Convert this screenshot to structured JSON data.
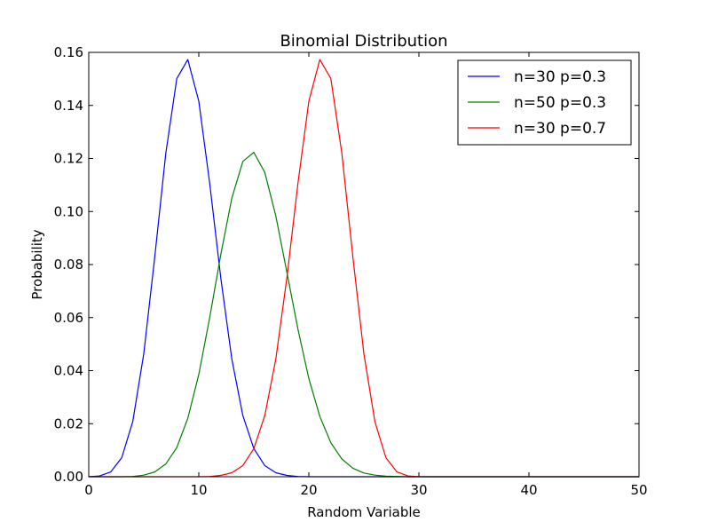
{
  "chart_data": {
    "type": "line",
    "title": "Binomial Distribution",
    "xlabel": "Random Variable",
    "ylabel": "Probability",
    "xlim": [
      0,
      50
    ],
    "ylim": [
      0,
      0.16
    ],
    "xticks": [
      0,
      10,
      20,
      30,
      40,
      50
    ],
    "yticks": [
      0.0,
      0.02,
      0.04,
      0.06,
      0.08,
      0.1,
      0.12,
      0.14,
      0.16
    ],
    "xtick_labels": [
      "0",
      "10",
      "20",
      "30",
      "40",
      "50"
    ],
    "ytick_labels": [
      "0.00",
      "0.02",
      "0.04",
      "0.06",
      "0.08",
      "0.10",
      "0.12",
      "0.14",
      "0.16"
    ],
    "grid": false,
    "legend_position": "top-right",
    "x": [
      0,
      1,
      2,
      3,
      4,
      5,
      6,
      7,
      8,
      9,
      10,
      11,
      12,
      13,
      14,
      15,
      16,
      17,
      18,
      19,
      20,
      21,
      22,
      23,
      24,
      25,
      26,
      27,
      28,
      29,
      30,
      31,
      32,
      33,
      34,
      35,
      36,
      37,
      38,
      39,
      40,
      41,
      42,
      43,
      44,
      45,
      46,
      47,
      48,
      49,
      50
    ],
    "series": [
      {
        "name": "n=30 p=0.3",
        "color": "#0000ff",
        "values": [
          2e-05,
          0.0003,
          0.0018,
          0.0072,
          0.0208,
          0.0464,
          0.0829,
          0.1219,
          0.1501,
          0.1573,
          0.1416,
          0.1103,
          0.0749,
          0.0444,
          0.0231,
          0.0106,
          0.0042,
          0.0015,
          0.0005,
          0.0001,
          0.0,
          0.0,
          0.0,
          0.0,
          0.0,
          0.0,
          0.0,
          0.0,
          0.0,
          0.0,
          0.0,
          0,
          0,
          0,
          0,
          0,
          0,
          0,
          0,
          0,
          0,
          0,
          0,
          0,
          0,
          0,
          0,
          0,
          0,
          0,
          0
        ]
      },
      {
        "name": "n=50 p=0.3",
        "color": "#008000",
        "values": [
          0.0,
          0.0,
          0.0,
          0.0,
          0.0001,
          0.0006,
          0.0018,
          0.0048,
          0.011,
          0.022,
          0.0386,
          0.0602,
          0.0838,
          0.105,
          0.1189,
          0.1223,
          0.1147,
          0.0983,
          0.0772,
          0.0558,
          0.037,
          0.0227,
          0.0128,
          0.0067,
          0.0032,
          0.0014,
          0.0006,
          0.0002,
          0.0001,
          0.0,
          0.0,
          0,
          0,
          0,
          0,
          0,
          0,
          0,
          0,
          0,
          0,
          0,
          0,
          0,
          0,
          0,
          0,
          0,
          0,
          0,
          0
        ]
      },
      {
        "name": "n=30 p=0.7",
        "color": "#ff0000",
        "values": [
          0,
          0,
          0,
          0,
          0,
          0,
          0,
          0,
          0,
          0,
          0.0,
          0.0001,
          0.0005,
          0.0015,
          0.0042,
          0.0106,
          0.0231,
          0.0444,
          0.0749,
          0.1103,
          0.1416,
          0.1573,
          0.1501,
          0.1219,
          0.0829,
          0.0464,
          0.0208,
          0.0072,
          0.0018,
          0.0003,
          2e-05,
          0,
          0,
          0,
          0,
          0,
          0,
          0,
          0,
          0,
          0,
          0,
          0,
          0,
          0,
          0,
          0,
          0,
          0,
          0,
          0
        ]
      }
    ]
  }
}
